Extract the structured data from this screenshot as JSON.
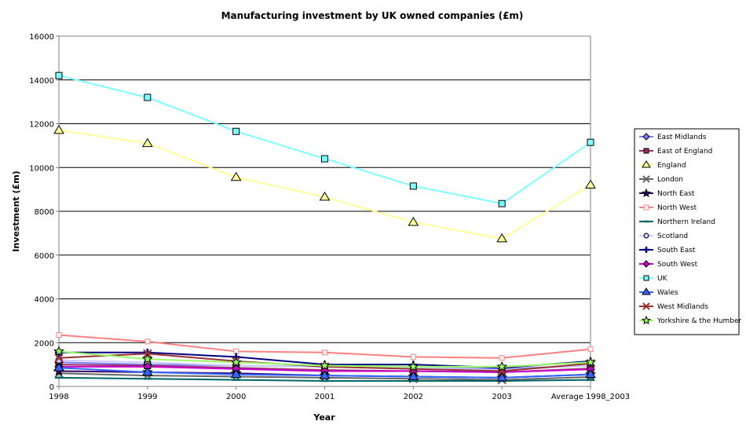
{
  "chart_data": {
    "type": "line",
    "title": "Manufacturing investment by UK owned companies (£m)",
    "xlabel": "Year",
    "ylabel": "Investment (£m)",
    "categories": [
      "1998",
      "1999",
      "2000",
      "2001",
      "2002",
      "2003",
      "Average 1998_2003"
    ],
    "ylim": [
      0,
      16000
    ],
    "yticks": [
      0,
      2000,
      4000,
      6000,
      8000,
      10000,
      12000,
      14000,
      16000
    ],
    "grid": "horizontal",
    "legend_position": "right",
    "series": [
      {
        "name": "East Midlands",
        "color": "#8080ff",
        "marker": "diamond",
        "values": [
          1100,
          1000,
          950,
          900,
          850,
          800,
          950
        ]
      },
      {
        "name": "East of England",
        "color": "#993366",
        "marker": "square",
        "values": [
          1000,
          950,
          850,
          750,
          700,
          650,
          820
        ]
      },
      {
        "name": "England",
        "color": "#ffff99",
        "marker": "triangle",
        "values": [
          11700,
          11100,
          9550,
          8650,
          7500,
          6750,
          9200
        ]
      },
      {
        "name": "London",
        "color": "#666666",
        "marker": "x",
        "values": [
          600,
          500,
          450,
          400,
          350,
          300,
          430
        ]
      },
      {
        "name": "North East",
        "color": "#330066",
        "marker": "star",
        "values": [
          700,
          650,
          600,
          500,
          450,
          400,
          550
        ]
      },
      {
        "name": "North West",
        "color": "#ff8080",
        "marker": "square-small",
        "values": [
          2350,
          2050,
          1600,
          1550,
          1350,
          1300,
          1700
        ]
      },
      {
        "name": "Northern Ireland",
        "color": "#006666",
        "marker": "dash",
        "values": [
          400,
          350,
          300,
          250,
          250,
          250,
          300
        ]
      },
      {
        "name": "Scotland",
        "color": "#ccccff",
        "marker": "circle",
        "values": [
          1200,
          1100,
          950,
          900,
          850,
          750,
          950
        ]
      },
      {
        "name": "South East",
        "color": "#000080",
        "marker": "plus",
        "values": [
          1550,
          1550,
          1350,
          1000,
          1000,
          850,
          1150
        ]
      },
      {
        "name": "South West",
        "color": "#cc00cc",
        "marker": "diamond",
        "values": [
          900,
          900,
          800,
          700,
          700,
          650,
          780
        ]
      },
      {
        "name": "UK",
        "color": "#80ffff",
        "marker": "square",
        "values": [
          14200,
          13200,
          11650,
          10400,
          9150,
          8350,
          11150
        ]
      },
      {
        "name": "Wales",
        "color": "#3366ff",
        "marker": "triangle",
        "values": [
          850,
          650,
          550,
          500,
          450,
          400,
          550
        ]
      },
      {
        "name": "West Midlands",
        "color": "#993333",
        "marker": "x",
        "values": [
          1300,
          1500,
          1150,
          900,
          800,
          700,
          1050
        ]
      },
      {
        "name": "Yorkshire & the Humber",
        "color": "#99ff66",
        "marker": "star",
        "values": [
          1600,
          1250,
          1100,
          950,
          900,
          900,
          1100
        ]
      }
    ]
  }
}
